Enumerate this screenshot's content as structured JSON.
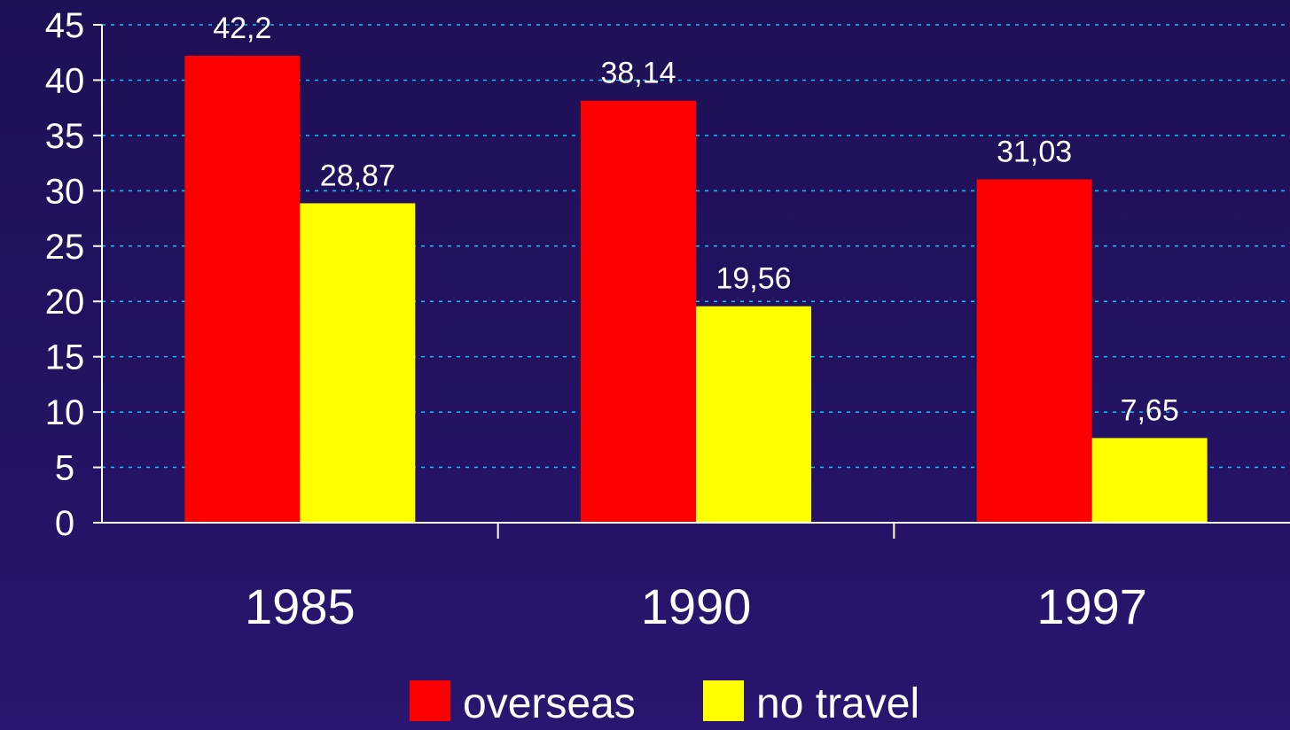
{
  "chart_data": {
    "type": "bar",
    "categories": [
      "1985",
      "1990",
      "1997"
    ],
    "series": [
      {
        "name": "overseas",
        "color": "#ff0000",
        "values": [
          42.2,
          38.14,
          31.03
        ],
        "labels": [
          "42,2",
          "38,14",
          "31,03"
        ]
      },
      {
        "name": "no travel",
        "color": "#ffff00",
        "values": [
          28.87,
          19.56,
          7.65
        ],
        "labels": [
          "28,87",
          "19,56",
          "7,65"
        ]
      }
    ],
    "title": "",
    "xlabel": "",
    "ylabel": "",
    "ylim": [
      0,
      45
    ],
    "yticks": [
      0,
      5,
      10,
      15,
      20,
      25,
      30,
      35,
      40,
      45
    ],
    "grid": true,
    "grid_color": "#00ccff",
    "legend_position": "bottom",
    "background_color": "#22105e"
  }
}
